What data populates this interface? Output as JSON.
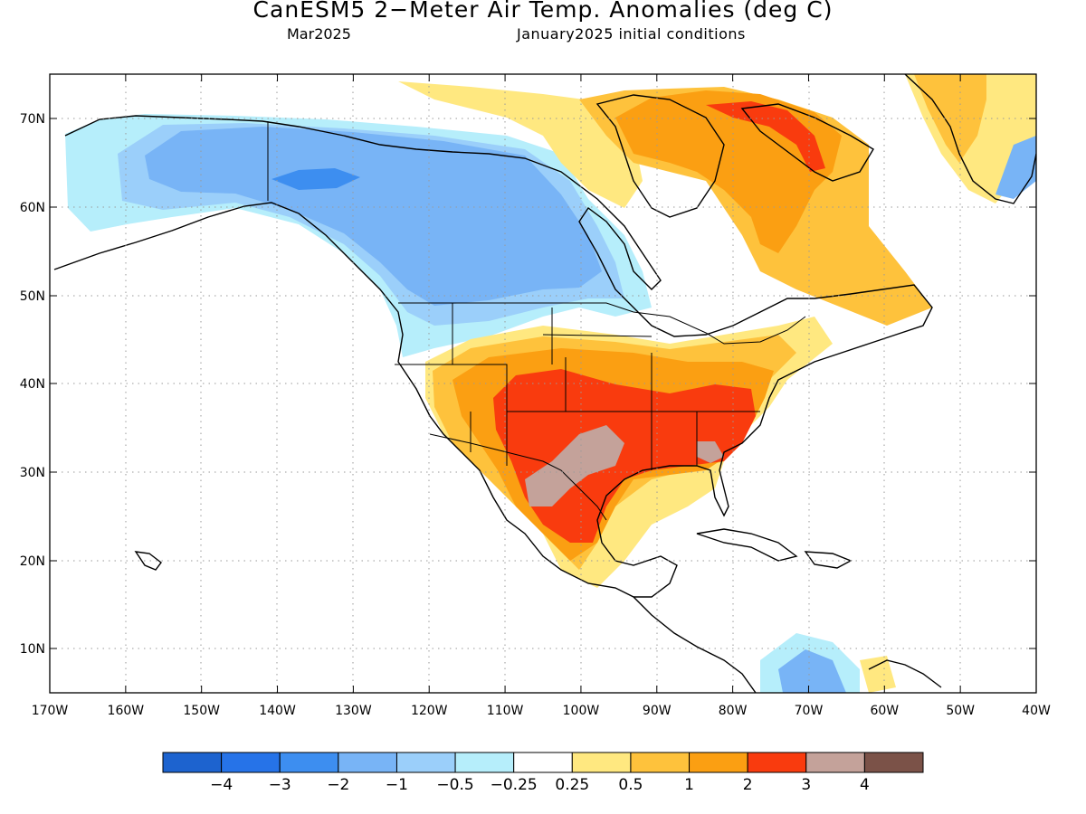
{
  "title": "CanESM5 2−Meter Air Temp. Anomalies (deg C)",
  "subtitle_left": "Mar2025",
  "subtitle_right": "January2025 initial conditions",
  "lat_labels": [
    "70N",
    "60N",
    "50N",
    "40N",
    "30N",
    "20N",
    "10N"
  ],
  "lon_labels": [
    "170W",
    "160W",
    "150W",
    "140W",
    "130W",
    "120W",
    "110W",
    "100W",
    "90W",
    "80W",
    "70W",
    "60W",
    "50W",
    "40W"
  ],
  "colorbar": {
    "colors": [
      "#1d63cf",
      "#2673e8",
      "#3d8ef0",
      "#78b4f6",
      "#9bcffa",
      "#b6eefb",
      "#ffffff",
      "#ffe880",
      "#fec23c",
      "#fb9f12",
      "#f93b0e",
      "#c4a29a",
      "#7b5248"
    ],
    "labels": [
      "−4",
      "−3",
      "−2",
      "−1",
      "−0.5",
      "−0.25",
      "0.25",
      "0.5",
      "1",
      "2",
      "3",
      "4"
    ]
  },
  "map_colors": {
    "land_outline": "#000000",
    "grid": "#9a9a9a"
  }
}
